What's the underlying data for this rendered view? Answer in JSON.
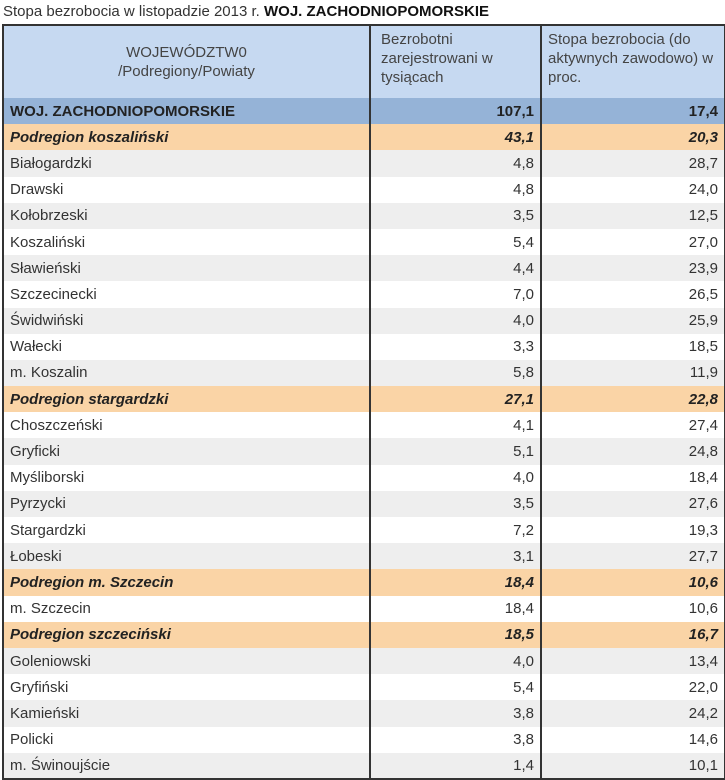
{
  "title": {
    "prefix": "Stopa bezrobocia w listopadzie 2013 r.",
    "region": "WOJ. ZACHODNIOPOMORSKIE"
  },
  "headers": {
    "col1_line1": "WOJEWÓDZTW0",
    "col1_line2": "/Podregiony/Powiaty",
    "col2": "Bezrobotni zarejestrowani w tysiącach",
    "col3": "Stopa bezrobocia (do aktywnych zawodowo) w proc."
  },
  "rows": [
    {
      "type": "woj",
      "name": "WOJ. ZACHODNIOPOMORSKIE",
      "unemployed": "107,1",
      "rate": "17,4"
    },
    {
      "type": "pod",
      "name": "Podregion koszaliński",
      "unemployed": "43,1",
      "rate": "20,3"
    },
    {
      "type": "grey",
      "name": "Białogardzki",
      "unemployed": "4,8",
      "rate": "28,7"
    },
    {
      "type": "white",
      "name": "Drawski",
      "unemployed": "4,8",
      "rate": "24,0"
    },
    {
      "type": "grey",
      "name": "Kołobrzeski",
      "unemployed": "3,5",
      "rate": "12,5"
    },
    {
      "type": "white",
      "name": "Koszaliński",
      "unemployed": "5,4",
      "rate": "27,0"
    },
    {
      "type": "grey",
      "name": "Sławieński",
      "unemployed": "4,4",
      "rate": "23,9"
    },
    {
      "type": "white",
      "name": "Szczecinecki",
      "unemployed": "7,0",
      "rate": "26,5"
    },
    {
      "type": "grey",
      "name": "Świdwiński",
      "unemployed": "4,0",
      "rate": "25,9"
    },
    {
      "type": "white",
      "name": "Wałecki",
      "unemployed": "3,3",
      "rate": "18,5"
    },
    {
      "type": "grey",
      "name": "m. Koszalin",
      "unemployed": "5,8",
      "rate": "11,9"
    },
    {
      "type": "pod",
      "name": "Podregion stargardzki",
      "unemployed": "27,1",
      "rate": "22,8"
    },
    {
      "type": "white",
      "name": "Choszczeński",
      "unemployed": "4,1",
      "rate": "27,4"
    },
    {
      "type": "grey",
      "name": "Gryficki",
      "unemployed": "5,1",
      "rate": "24,8"
    },
    {
      "type": "white",
      "name": "Myśliborski",
      "unemployed": "4,0",
      "rate": "18,4"
    },
    {
      "type": "grey",
      "name": "Pyrzycki",
      "unemployed": "3,5",
      "rate": "27,6"
    },
    {
      "type": "white",
      "name": "Stargardzki",
      "unemployed": "7,2",
      "rate": "19,3"
    },
    {
      "type": "grey",
      "name": "Łobeski",
      "unemployed": "3,1",
      "rate": "27,7"
    },
    {
      "type": "pod",
      "name": "Podregion m. Szczecin",
      "unemployed": "18,4",
      "rate": "10,6"
    },
    {
      "type": "white",
      "name": "m. Szczecin",
      "unemployed": "18,4",
      "rate": "10,6"
    },
    {
      "type": "pod",
      "name": "Podregion szczeciński",
      "unemployed": "18,5",
      "rate": "16,7"
    },
    {
      "type": "grey",
      "name": "Goleniowski",
      "unemployed": "4,0",
      "rate": "13,4"
    },
    {
      "type": "white",
      "name": "Gryfiński",
      "unemployed": "5,4",
      "rate": "22,0"
    },
    {
      "type": "grey",
      "name": "Kamieński",
      "unemployed": "3,8",
      "rate": "24,2"
    },
    {
      "type": "white",
      "name": "Policki",
      "unemployed": "3,8",
      "rate": "14,6"
    },
    {
      "type": "grey",
      "name": "m.  Świnoujście",
      "unemployed": "1,4",
      "rate": "10,1"
    }
  ]
}
